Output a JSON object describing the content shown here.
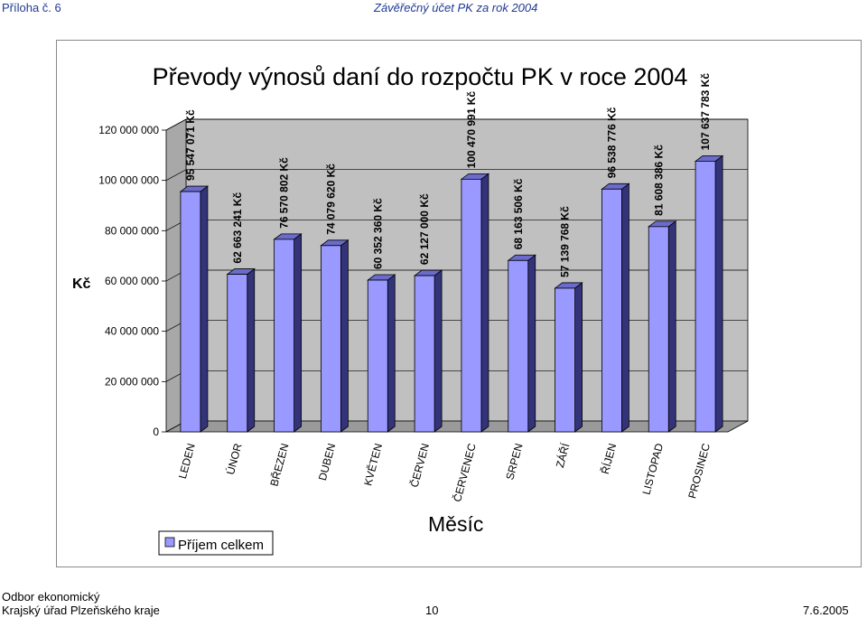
{
  "header": {
    "left": "Příloha č. 6",
    "center": "Závěřečný účet PK za rok 2004"
  },
  "footer": {
    "line1": "Odbor ekonomický",
    "line2": "Krajský úřad Plzeňského kraje",
    "page": "10",
    "date": "7.6.2005"
  },
  "colors": {
    "bar_front": "#9999ff",
    "bar_side": "#33337a",
    "bar_top": "#6b6bcc",
    "wall": "#c0c0c0"
  },
  "chart_data": {
    "type": "bar",
    "title": "Převody výnosů daní do rozpočtu PK v roce 2004",
    "xlabel": "Měsíc",
    "ylabel": "Kč",
    "ylim": [
      0,
      120000000
    ],
    "yticks": [
      0,
      20000000,
      40000000,
      60000000,
      80000000,
      100000000,
      120000000
    ],
    "ytick_labels": [
      "0",
      "20 000 000",
      "40 000 000",
      "60 000 000",
      "80 000 000",
      "100 000 000",
      "120 000 000"
    ],
    "grid": true,
    "legend": "bottom-left",
    "categories": [
      "LEDEN",
      "ÚNOR",
      "BŘEZEN",
      "DUBEN",
      "KVĚTEN",
      "ČERVEN",
      "ČERVENEC",
      "SRPEN",
      "ZÁŘÍ",
      "ŘÍJEN",
      "LISTOPAD",
      "PROSINEC"
    ],
    "series": [
      {
        "name": "Příjem celkem",
        "values": [
          95547071,
          62663241,
          76570802,
          74079620,
          60352360,
          62127000,
          100470991,
          68163506,
          57139768,
          96538776,
          81608386,
          107637783
        ],
        "labels": [
          "95 547 071 Kč",
          "62 663 241 Kč",
          "76 570 802 Kč",
          "74 079 620 Kč",
          "60 352 360 Kč",
          "62 127 000 Kč",
          "100 470 991 Kč",
          "68 163 506 Kč",
          "57 139 768 Kč",
          "96 538 776 Kč",
          "81 608 386 Kč",
          "107 637 783 Kč"
        ]
      }
    ]
  }
}
